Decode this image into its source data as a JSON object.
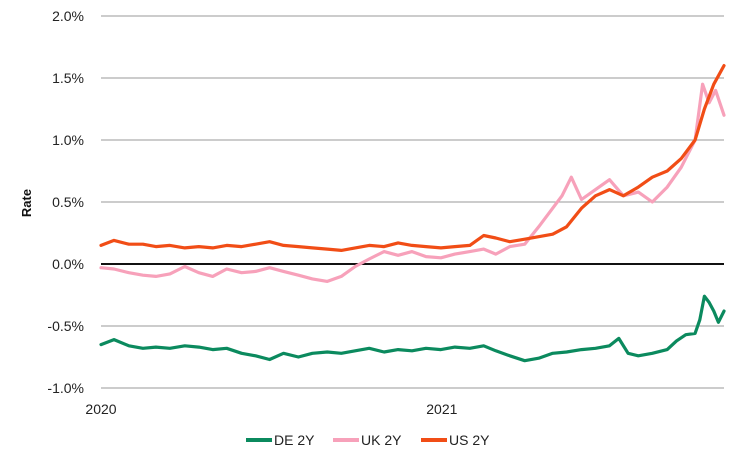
{
  "chart_data": {
    "type": "line",
    "title": "",
    "xlabel": "",
    "ylabel": "Rate",
    "ylim": [
      -1.0,
      2.0
    ],
    "yticks": [
      {
        "value": -1.0,
        "label": "-1.0%"
      },
      {
        "value": -0.5,
        "label": "-0.5%"
      },
      {
        "value": 0.0,
        "label": "0.0%"
      },
      {
        "value": 0.5,
        "label": "0.5%"
      },
      {
        "value": 1.0,
        "label": "1.0%"
      },
      {
        "value": 1.5,
        "label": "1.5%"
      },
      {
        "value": 2.0,
        "label": "2.0%"
      }
    ],
    "xlim": [
      "2020-01-01",
      "2021-10-31"
    ],
    "xticks": [
      {
        "value": "2020-01-01",
        "label": "2020"
      },
      {
        "value": "2021-01-01",
        "label": "2021"
      }
    ],
    "grid": "horizontal",
    "zero_line": true,
    "legend_position": "bottom",
    "series": [
      {
        "name": "DE 2Y",
        "color": "#0b8a5e",
        "points": [
          [
            "2020-01-01",
            -0.65
          ],
          [
            "2020-01-15",
            -0.61
          ],
          [
            "2020-01-31",
            -0.66
          ],
          [
            "2020-02-15",
            -0.68
          ],
          [
            "2020-02-29",
            -0.67
          ],
          [
            "2020-03-15",
            -0.68
          ],
          [
            "2020-03-31",
            -0.66
          ],
          [
            "2020-04-15",
            -0.67
          ],
          [
            "2020-04-30",
            -0.69
          ],
          [
            "2020-05-15",
            -0.68
          ],
          [
            "2020-05-31",
            -0.72
          ],
          [
            "2020-06-15",
            -0.74
          ],
          [
            "2020-06-30",
            -0.77
          ],
          [
            "2020-07-15",
            -0.72
          ],
          [
            "2020-07-31",
            -0.75
          ],
          [
            "2020-08-15",
            -0.72
          ],
          [
            "2020-08-31",
            -0.71
          ],
          [
            "2020-09-15",
            -0.72
          ],
          [
            "2020-09-30",
            -0.7
          ],
          [
            "2020-10-15",
            -0.68
          ],
          [
            "2020-10-31",
            -0.71
          ],
          [
            "2020-11-15",
            -0.69
          ],
          [
            "2020-11-30",
            -0.7
          ],
          [
            "2020-12-15",
            -0.68
          ],
          [
            "2020-12-31",
            -0.69
          ],
          [
            "2021-01-15",
            -0.67
          ],
          [
            "2021-01-31",
            -0.68
          ],
          [
            "2021-02-15",
            -0.66
          ],
          [
            "2021-02-28",
            -0.7
          ],
          [
            "2021-03-15",
            -0.74
          ],
          [
            "2021-03-31",
            -0.78
          ],
          [
            "2021-04-15",
            -0.76
          ],
          [
            "2021-04-30",
            -0.72
          ],
          [
            "2021-05-15",
            -0.71
          ],
          [
            "2021-05-31",
            -0.69
          ],
          [
            "2021-06-15",
            -0.68
          ],
          [
            "2021-06-30",
            -0.66
          ],
          [
            "2021-07-10",
            -0.6
          ],
          [
            "2021-07-20",
            -0.72
          ],
          [
            "2021-07-31",
            -0.74
          ],
          [
            "2021-08-15",
            -0.72
          ],
          [
            "2021-08-31",
            -0.69
          ],
          [
            "2021-09-10",
            -0.62
          ],
          [
            "2021-09-20",
            -0.57
          ],
          [
            "2021-09-30",
            -0.56
          ],
          [
            "2021-10-05",
            -0.45
          ],
          [
            "2021-10-10",
            -0.26
          ],
          [
            "2021-10-15",
            -0.31
          ],
          [
            "2021-10-20",
            -0.38
          ],
          [
            "2021-10-25",
            -0.47
          ],
          [
            "2021-10-31",
            -0.38
          ]
        ]
      },
      {
        "name": "UK 2Y",
        "color": "#f7a1ba",
        "points": [
          [
            "2020-01-01",
            -0.03
          ],
          [
            "2020-01-15",
            -0.04
          ],
          [
            "2020-01-31",
            -0.07
          ],
          [
            "2020-02-15",
            -0.09
          ],
          [
            "2020-02-29",
            -0.1
          ],
          [
            "2020-03-15",
            -0.08
          ],
          [
            "2020-03-31",
            -0.02
          ],
          [
            "2020-04-15",
            -0.07
          ],
          [
            "2020-04-30",
            -0.1
          ],
          [
            "2020-05-15",
            -0.04
          ],
          [
            "2020-05-31",
            -0.07
          ],
          [
            "2020-06-15",
            -0.06
          ],
          [
            "2020-06-30",
            -0.03
          ],
          [
            "2020-07-15",
            -0.06
          ],
          [
            "2020-07-31",
            -0.09
          ],
          [
            "2020-08-15",
            -0.12
          ],
          [
            "2020-08-31",
            -0.14
          ],
          [
            "2020-09-15",
            -0.1
          ],
          [
            "2020-09-30",
            -0.02
          ],
          [
            "2020-10-15",
            0.04
          ],
          [
            "2020-10-31",
            0.1
          ],
          [
            "2020-11-15",
            0.07
          ],
          [
            "2020-11-30",
            0.1
          ],
          [
            "2020-12-15",
            0.06
          ],
          [
            "2020-12-31",
            0.05
          ],
          [
            "2021-01-15",
            0.08
          ],
          [
            "2021-01-31",
            0.1
          ],
          [
            "2021-02-15",
            0.12
          ],
          [
            "2021-02-28",
            0.08
          ],
          [
            "2021-03-15",
            0.14
          ],
          [
            "2021-03-31",
            0.16
          ],
          [
            "2021-04-15",
            0.3
          ],
          [
            "2021-04-30",
            0.45
          ],
          [
            "2021-05-10",
            0.55
          ],
          [
            "2021-05-20",
            0.7
          ],
          [
            "2021-05-31",
            0.52
          ],
          [
            "2021-06-15",
            0.6
          ],
          [
            "2021-06-30",
            0.68
          ],
          [
            "2021-07-15",
            0.55
          ],
          [
            "2021-07-31",
            0.58
          ],
          [
            "2021-08-15",
            0.5
          ],
          [
            "2021-08-31",
            0.62
          ],
          [
            "2021-09-15",
            0.78
          ],
          [
            "2021-09-30",
            1.0
          ],
          [
            "2021-10-08",
            1.45
          ],
          [
            "2021-10-15",
            1.3
          ],
          [
            "2021-10-22",
            1.4
          ],
          [
            "2021-10-31",
            1.2
          ]
        ]
      },
      {
        "name": "US 2Y",
        "color": "#f14d16",
        "points": [
          [
            "2020-01-01",
            0.15
          ],
          [
            "2020-01-15",
            0.19
          ],
          [
            "2020-01-31",
            0.16
          ],
          [
            "2020-02-15",
            0.16
          ],
          [
            "2020-02-29",
            0.14
          ],
          [
            "2020-03-15",
            0.15
          ],
          [
            "2020-03-31",
            0.13
          ],
          [
            "2020-04-15",
            0.14
          ],
          [
            "2020-04-30",
            0.13
          ],
          [
            "2020-05-15",
            0.15
          ],
          [
            "2020-05-31",
            0.14
          ],
          [
            "2020-06-15",
            0.16
          ],
          [
            "2020-06-30",
            0.18
          ],
          [
            "2020-07-15",
            0.15
          ],
          [
            "2020-07-31",
            0.14
          ],
          [
            "2020-08-15",
            0.13
          ],
          [
            "2020-08-31",
            0.12
          ],
          [
            "2020-09-15",
            0.11
          ],
          [
            "2020-09-30",
            0.13
          ],
          [
            "2020-10-15",
            0.15
          ],
          [
            "2020-10-31",
            0.14
          ],
          [
            "2020-11-15",
            0.17
          ],
          [
            "2020-11-30",
            0.15
          ],
          [
            "2020-12-15",
            0.14
          ],
          [
            "2020-12-31",
            0.13
          ],
          [
            "2021-01-15",
            0.14
          ],
          [
            "2021-01-31",
            0.15
          ],
          [
            "2021-02-15",
            0.23
          ],
          [
            "2021-02-28",
            0.21
          ],
          [
            "2021-03-15",
            0.18
          ],
          [
            "2021-03-31",
            0.2
          ],
          [
            "2021-04-15",
            0.22
          ],
          [
            "2021-04-30",
            0.24
          ],
          [
            "2021-05-15",
            0.3
          ],
          [
            "2021-05-31",
            0.45
          ],
          [
            "2021-06-15",
            0.55
          ],
          [
            "2021-06-30",
            0.6
          ],
          [
            "2021-07-15",
            0.55
          ],
          [
            "2021-07-31",
            0.62
          ],
          [
            "2021-08-15",
            0.7
          ],
          [
            "2021-08-31",
            0.75
          ],
          [
            "2021-09-15",
            0.85
          ],
          [
            "2021-09-30",
            1.0
          ],
          [
            "2021-10-10",
            1.25
          ],
          [
            "2021-10-20",
            1.45
          ],
          [
            "2021-10-31",
            1.6
          ]
        ]
      }
    ]
  }
}
